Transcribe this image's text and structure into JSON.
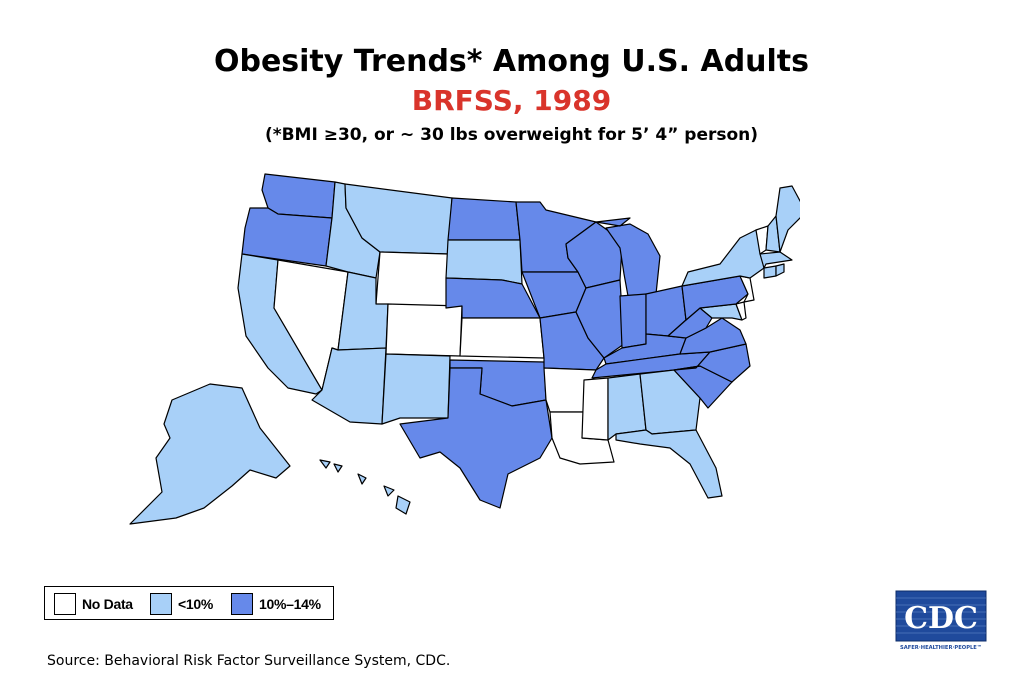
{
  "header": {
    "title": "Obesity Trends* Among U.S. Adults",
    "subtitle": "BRFSS, 1989",
    "note": "(*BMI ≥30, or ~ 30 lbs overweight for 5’ 4” person)"
  },
  "colors": {
    "subtitle": "#d9342b",
    "no_data": "#ffffff",
    "under_10": "#a8d0f8",
    "range_10_14": "#6689ea",
    "border": "#000000",
    "cdc_blue": "#1f4a9c"
  },
  "legend": {
    "items": [
      {
        "label": "No Data",
        "category": "no_data"
      },
      {
        "label": "<10%",
        "category": "under_10"
      },
      {
        "label": "10%–14%",
        "category": "range_10_14"
      }
    ]
  },
  "map_data": {
    "no_data": [
      "NV",
      "WY",
      "CO",
      "KS",
      "AR",
      "LA",
      "MS",
      "VT",
      "NJ",
      "DE"
    ],
    "under_10": [
      "CA",
      "ID",
      "MT",
      "UT",
      "AZ",
      "NM",
      "SD",
      "AL",
      "GA",
      "FL",
      "ME",
      "NH",
      "NY",
      "MA",
      "CT",
      "RI",
      "MD",
      "AK",
      "HI"
    ],
    "range_10_14": [
      "WA",
      "OR",
      "ND",
      "NE",
      "OK",
      "TX",
      "MN",
      "IA",
      "MO",
      "WI",
      "IL",
      "MI",
      "IN",
      "OH",
      "KY",
      "TN",
      "PA",
      "WV",
      "VA",
      "NC",
      "SC"
    ]
  },
  "source": "Source: Behavioral Risk Factor Surveillance System, CDC.",
  "logo": {
    "text": "CDC",
    "tagline": "SAFER·HEALTHIER·PEOPLE™"
  }
}
